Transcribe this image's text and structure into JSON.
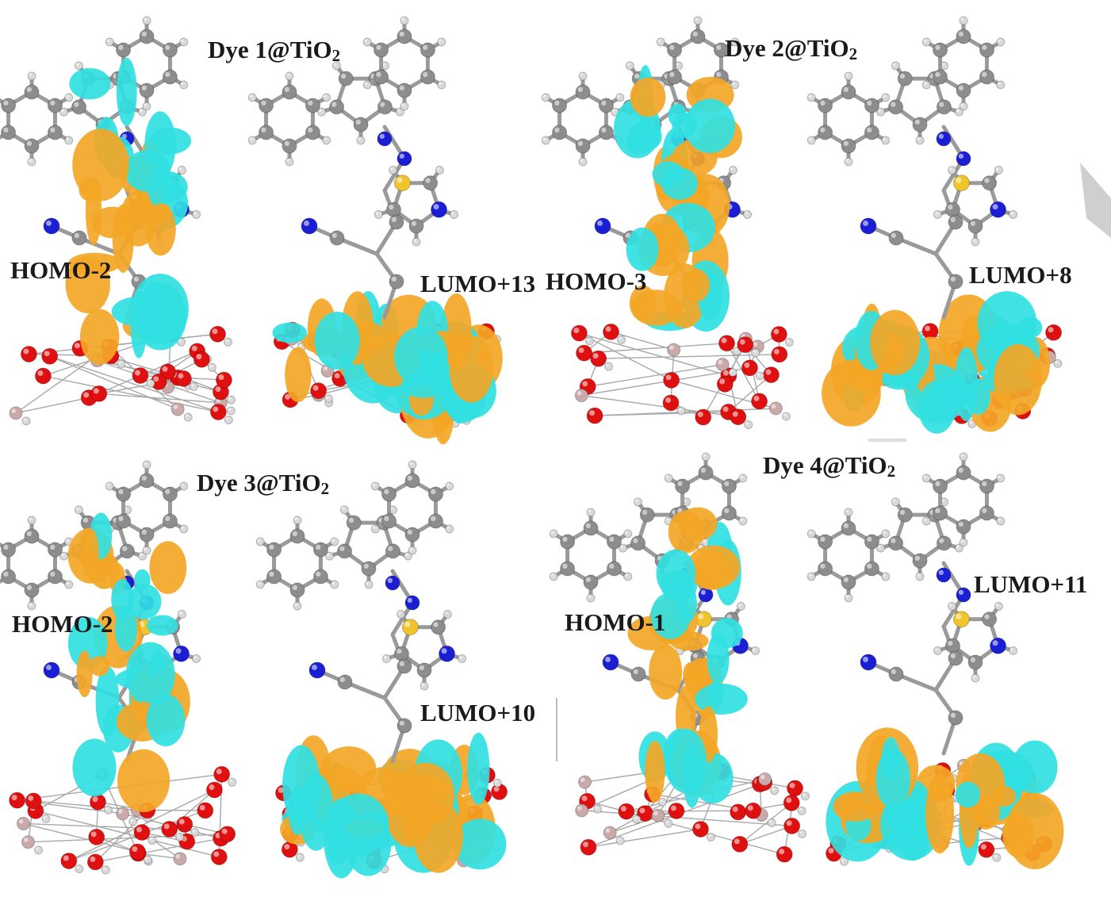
{
  "colors": {
    "orbital_positive": "#f3a625",
    "orbital_negative": "#31dfe2",
    "carbon": "#8d8d8d",
    "hydrogen": "#d9d9d9",
    "nitrogen": "#1b1fd4",
    "oxygen": "#e01010",
    "sulfur": "#f0c42a",
    "titanium": "#c9a9a9",
    "label_text": "#1a1a1a"
  },
  "panels": [
    {
      "title": {
        "prefix": "Dye 1@TiO",
        "subscript": "2"
      },
      "homo_label": "HOMO-2",
      "lumo_label": "LUMO+13"
    },
    {
      "title": {
        "prefix": "Dye 2@TiO",
        "subscript": "2"
      },
      "homo_label": "HOMO-3",
      "lumo_label": "LUMO+8"
    },
    {
      "title": {
        "prefix": "Dye 3@TiO",
        "subscript": "2"
      },
      "homo_label": "HOMO-2",
      "lumo_label": "LUMO+10"
    },
    {
      "title": {
        "prefix": "Dye 4@TiO",
        "subscript": "2"
      },
      "homo_label": "HOMO-1",
      "lumo_label": "LUMO+11"
    }
  ]
}
